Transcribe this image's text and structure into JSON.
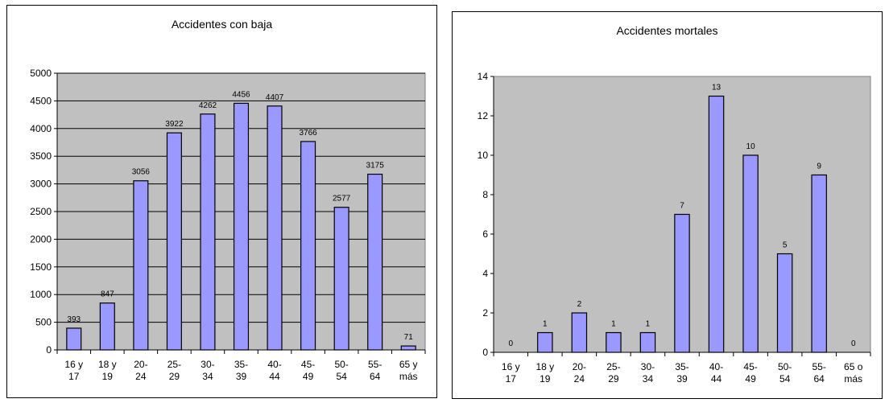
{
  "chart_data": [
    {
      "type": "bar",
      "title": "Accidentes con baja",
      "categories": [
        [
          "16 y",
          "17"
        ],
        [
          "18 y",
          "19"
        ],
        [
          "20-",
          "24"
        ],
        [
          "25-",
          "29"
        ],
        [
          "30-",
          "34"
        ],
        [
          "35-",
          "39"
        ],
        [
          "40-",
          "44"
        ],
        [
          "45-",
          "49"
        ],
        [
          "50-",
          "54"
        ],
        [
          "55-",
          "64"
        ],
        [
          "65 y",
          "más"
        ]
      ],
      "values": [
        393,
        847,
        3056,
        3922,
        4262,
        4456,
        4407,
        3766,
        2577,
        3175,
        71
      ],
      "data_labels": [
        "393",
        "847",
        "3056",
        "3922",
        "4262",
        "4456",
        "4407",
        "3766",
        "2577",
        "3175",
        "71"
      ],
      "ylim": [
        0,
        5000
      ],
      "yticks": [
        "0",
        "500",
        "1000",
        "1500",
        "2000",
        "2500",
        "3000",
        "3500",
        "4000",
        "4500",
        "5000"
      ],
      "grid": true,
      "legend": "none"
    },
    {
      "type": "bar",
      "title": "Accidentes mortales",
      "categories": [
        [
          "16 y",
          "17"
        ],
        [
          "18 y",
          "19"
        ],
        [
          "20-",
          "24"
        ],
        [
          "25-",
          "29"
        ],
        [
          "30-",
          "34"
        ],
        [
          "35-",
          "39"
        ],
        [
          "40-",
          "44"
        ],
        [
          "45-",
          "49"
        ],
        [
          "50-",
          "54"
        ],
        [
          "55-",
          "64"
        ],
        [
          "65 o",
          "más"
        ]
      ],
      "values": [
        0,
        1,
        2,
        1,
        1,
        7,
        13,
        10,
        5,
        9,
        0
      ],
      "data_labels": [
        "0",
        "1",
        "2",
        "1",
        "1",
        "7",
        "13",
        "10",
        "5",
        "9",
        "0"
      ],
      "ylim": [
        0,
        14
      ],
      "yticks": [
        "0",
        "2",
        "4",
        "6",
        "8",
        "10",
        "12",
        "14"
      ],
      "grid": false,
      "legend": "none"
    }
  ],
  "colors": {
    "plot_background": "#c0c0c0",
    "bar_fill": "#9999ff",
    "bar_stroke": "#000000",
    "grid": "#000000"
  }
}
